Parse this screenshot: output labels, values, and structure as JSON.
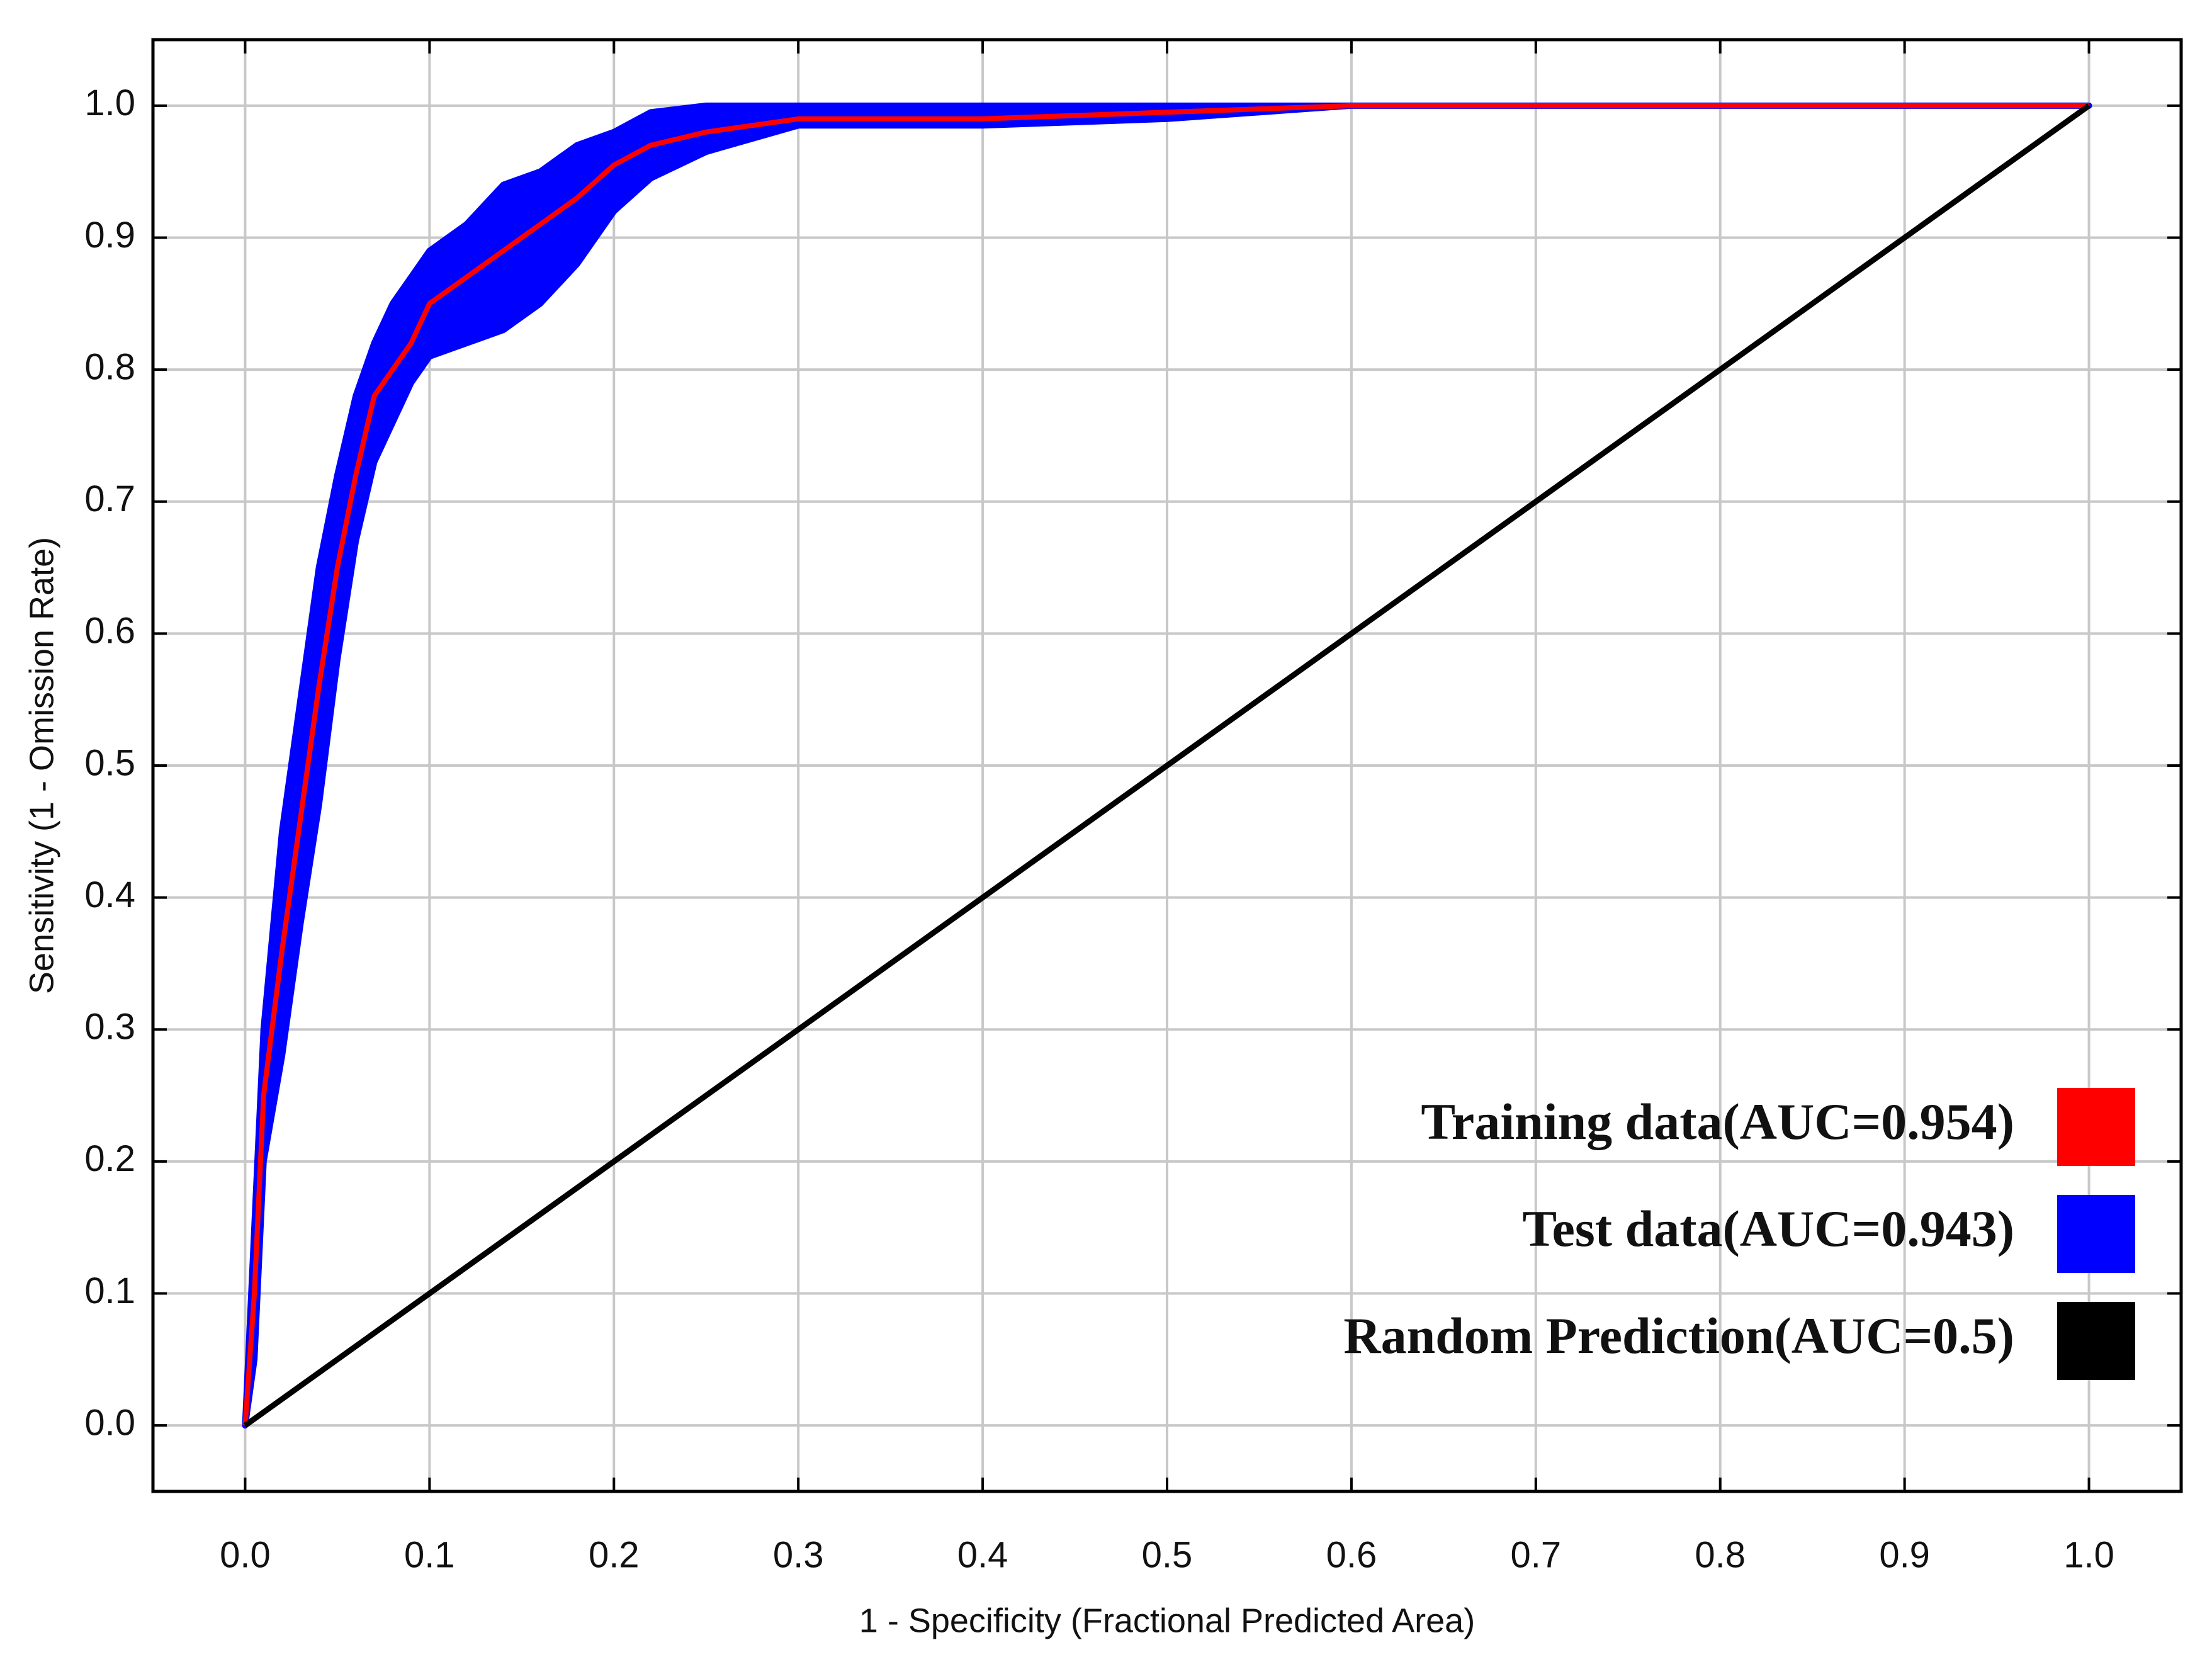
{
  "chart_data": {
    "type": "roc",
    "x_label": "1 - Specificity (Fractional Predicted Area)",
    "y_label": "Sensitivity (1 - Omission Rate)",
    "xlim": [
      -0.05,
      1.05
    ],
    "ylim": [
      -0.05,
      1.05
    ],
    "xticks": [
      {
        "value": 0,
        "label": "0.0"
      },
      0.1,
      0.2,
      0.3,
      0.4,
      0.5,
      0.6,
      0.7,
      0.8,
      0.9,
      {
        "value": 1,
        "label": "1.0"
      }
    ],
    "yticks": [
      {
        "value": 0,
        "label": "0.0"
      },
      0.1,
      0.2,
      0.3,
      0.4,
      0.5,
      0.6,
      0.7,
      0.8,
      0.9,
      {
        "value": 1,
        "label": "1.0"
      }
    ],
    "grid": true,
    "legend": "lower right",
    "x": [
      0,
      0.005,
      0.01,
      0.02,
      0.03,
      0.04,
      0.05,
      0.06,
      0.07,
      0.08,
      0.09,
      0.1,
      0.12,
      0.14,
      0.16,
      0.18,
      0.2,
      0.22,
      0.25,
      0.3,
      0.4,
      0.5,
      0.6,
      0.7,
      0.8,
      0.9,
      1
    ],
    "series": [
      {
        "name": "Training data(AUC=0.954)",
        "color": "#ff0000",
        "values": [
          0,
          0.1,
          0.25,
          0.36,
          0.46,
          0.56,
          0.65,
          0.72,
          0.78,
          0.8,
          0.82,
          0.85,
          0.87,
          0.89,
          0.91,
          0.93,
          0.955,
          0.97,
          0.98,
          0.99,
          0.99,
          0.995,
          1,
          1,
          1,
          1,
          1
        ]
      },
      {
        "name": "Test data(AUC=0.943)",
        "color": "#0000ff",
        "upper": [
          0,
          0.15,
          0.3,
          0.45,
          0.55,
          0.65,
          0.72,
          0.78,
          0.82,
          0.85,
          0.87,
          0.89,
          0.91,
          0.94,
          0.95,
          0.97,
          0.98,
          0.995,
          1,
          1,
          1,
          1,
          1,
          1,
          1,
          1,
          1
        ],
        "lower": [
          0,
          0.05,
          0.2,
          0.28,
          0.38,
          0.47,
          0.58,
          0.67,
          0.73,
          0.76,
          0.79,
          0.81,
          0.82,
          0.83,
          0.85,
          0.88,
          0.92,
          0.945,
          0.965,
          0.985,
          0.985,
          0.99,
          1,
          1,
          1,
          1,
          1
        ]
      },
      {
        "name": "Random Prediction(AUC=0.5)",
        "color": "#000000",
        "x": [
          0,
          1
        ],
        "values": [
          0,
          1
        ]
      }
    ]
  }
}
